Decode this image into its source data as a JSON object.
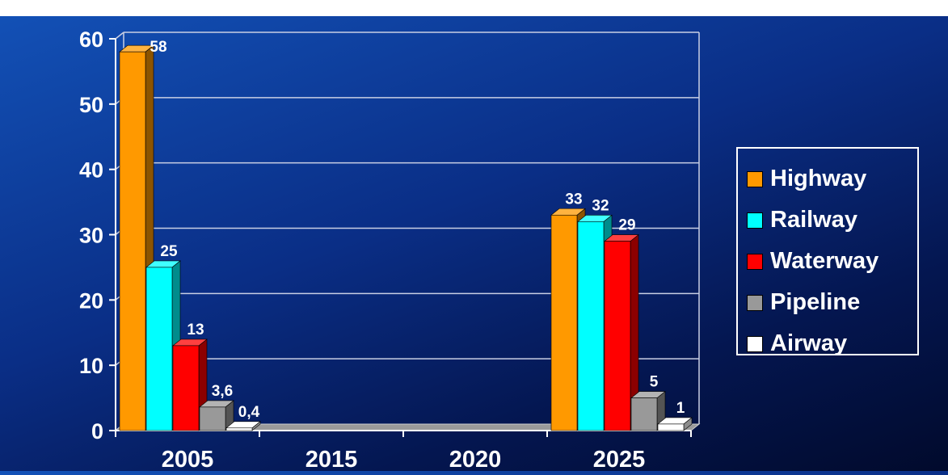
{
  "chart_data": {
    "type": "bar",
    "categories": [
      "2005",
      "2015",
      "2020",
      "2025"
    ],
    "series": [
      {
        "name": "Highway",
        "color": "#ff9900",
        "values": [
          58,
          null,
          null,
          33
        ],
        "labels": [
          "58",
          "",
          "",
          "33"
        ]
      },
      {
        "name": "Railway",
        "color": "#00ffff",
        "values": [
          25,
          null,
          null,
          32
        ],
        "labels": [
          "25",
          "",
          "",
          "32"
        ]
      },
      {
        "name": "Waterway",
        "color": "#ff0000",
        "values": [
          13,
          null,
          null,
          29
        ],
        "labels": [
          "13",
          "",
          "",
          "29"
        ]
      },
      {
        "name": "Pipeline",
        "color": "#999999",
        "values": [
          3.6,
          null,
          null,
          5
        ],
        "labels": [
          "3,6",
          "",
          "",
          "5"
        ]
      },
      {
        "name": "Airway",
        "color": "#ffffff",
        "values": [
          0.4,
          null,
          null,
          1
        ],
        "labels": [
          "0,4",
          "",
          "",
          "1"
        ]
      }
    ],
    "y_ticks": [
      "0",
      "10",
      "20",
      "30",
      "40",
      "50",
      "60"
    ],
    "ylim": [
      0,
      60
    ],
    "grid": true,
    "three_d": true,
    "legend_position": "right"
  }
}
